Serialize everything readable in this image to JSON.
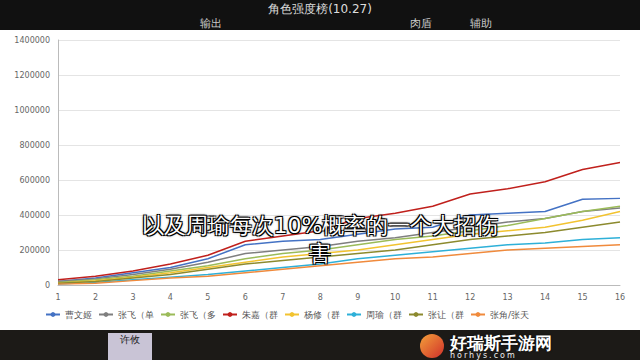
{
  "chart_data": {
    "type": "line",
    "title": "角色强度榜(10.27)",
    "categories": [
      1,
      2,
      3,
      4,
      5,
      6,
      7,
      8,
      9,
      10,
      11,
      12,
      13,
      14,
      15,
      16
    ],
    "ylim": [
      0,
      1400000
    ],
    "yticks": [
      0,
      200000,
      400000,
      600000,
      800000,
      1000000,
      1200000,
      1400000
    ],
    "grid": true,
    "legend": "bottom",
    "series": [
      {
        "name": "曹文姬",
        "color": "#4472c4",
        "values": [
          20000,
          40000,
          70000,
          100000,
          150000,
          230000,
          250000,
          260000,
          290000,
          320000,
          330000,
          400000,
          410000,
          420000,
          490000,
          495000
        ]
      },
      {
        "name": "张飞（单",
        "color": "#7f7f7f",
        "values": [
          20000,
          35000,
          60000,
          90000,
          130000,
          180000,
          200000,
          220000,
          250000,
          270000,
          300000,
          330000,
          360000,
          380000,
          420000,
          440000
        ]
      },
      {
        "name": "张飞（多",
        "color": "#9bbb59",
        "values": [
          15000,
          30000,
          50000,
          80000,
          110000,
          150000,
          180000,
          200000,
          230000,
          260000,
          280000,
          310000,
          340000,
          380000,
          420000,
          450000
        ]
      },
      {
        "name": "朱嘉（群",
        "color": "#c0201c",
        "values": [
          30000,
          50000,
          80000,
          120000,
          170000,
          250000,
          280000,
          310000,
          380000,
          410000,
          450000,
          520000,
          550000,
          590000,
          660000,
          700000
        ]
      },
      {
        "name": "杨修（群",
        "color": "#f2c330",
        "values": [
          10000,
          25000,
          45000,
          70000,
          100000,
          130000,
          160000,
          180000,
          200000,
          230000,
          260000,
          290000,
          310000,
          330000,
          370000,
          420000
        ]
      },
      {
        "name": "周瑜（群",
        "color": "#2eb0d8",
        "values": [
          5000,
          15000,
          30000,
          45000,
          60000,
          80000,
          100000,
          120000,
          150000,
          170000,
          190000,
          210000,
          230000,
          240000,
          260000,
          270000
        ]
      },
      {
        "name": "张让（群",
        "color": "#8c8a2e",
        "values": [
          10000,
          20000,
          40000,
          60000,
          90000,
          120000,
          140000,
          160000,
          180000,
          200000,
          230000,
          260000,
          280000,
          300000,
          330000,
          360000
        ]
      },
      {
        "name": "张角/张天",
        "color": "#f08a3c",
        "values": [
          5000,
          10000,
          25000,
          40000,
          50000,
          70000,
          90000,
          110000,
          130000,
          150000,
          160000,
          180000,
          200000,
          210000,
          220000,
          230000
        ]
      }
    ]
  },
  "header": {
    "columns": [
      "输出",
      "肉盾",
      "辅助"
    ]
  },
  "subtitle": [
    "以及周瑜每次10%概率的一个大招伤",
    "害"
  ],
  "card": "许攸",
  "watermark": {
    "name": "好瑞斯手游网",
    "site": "horhys.com"
  }
}
